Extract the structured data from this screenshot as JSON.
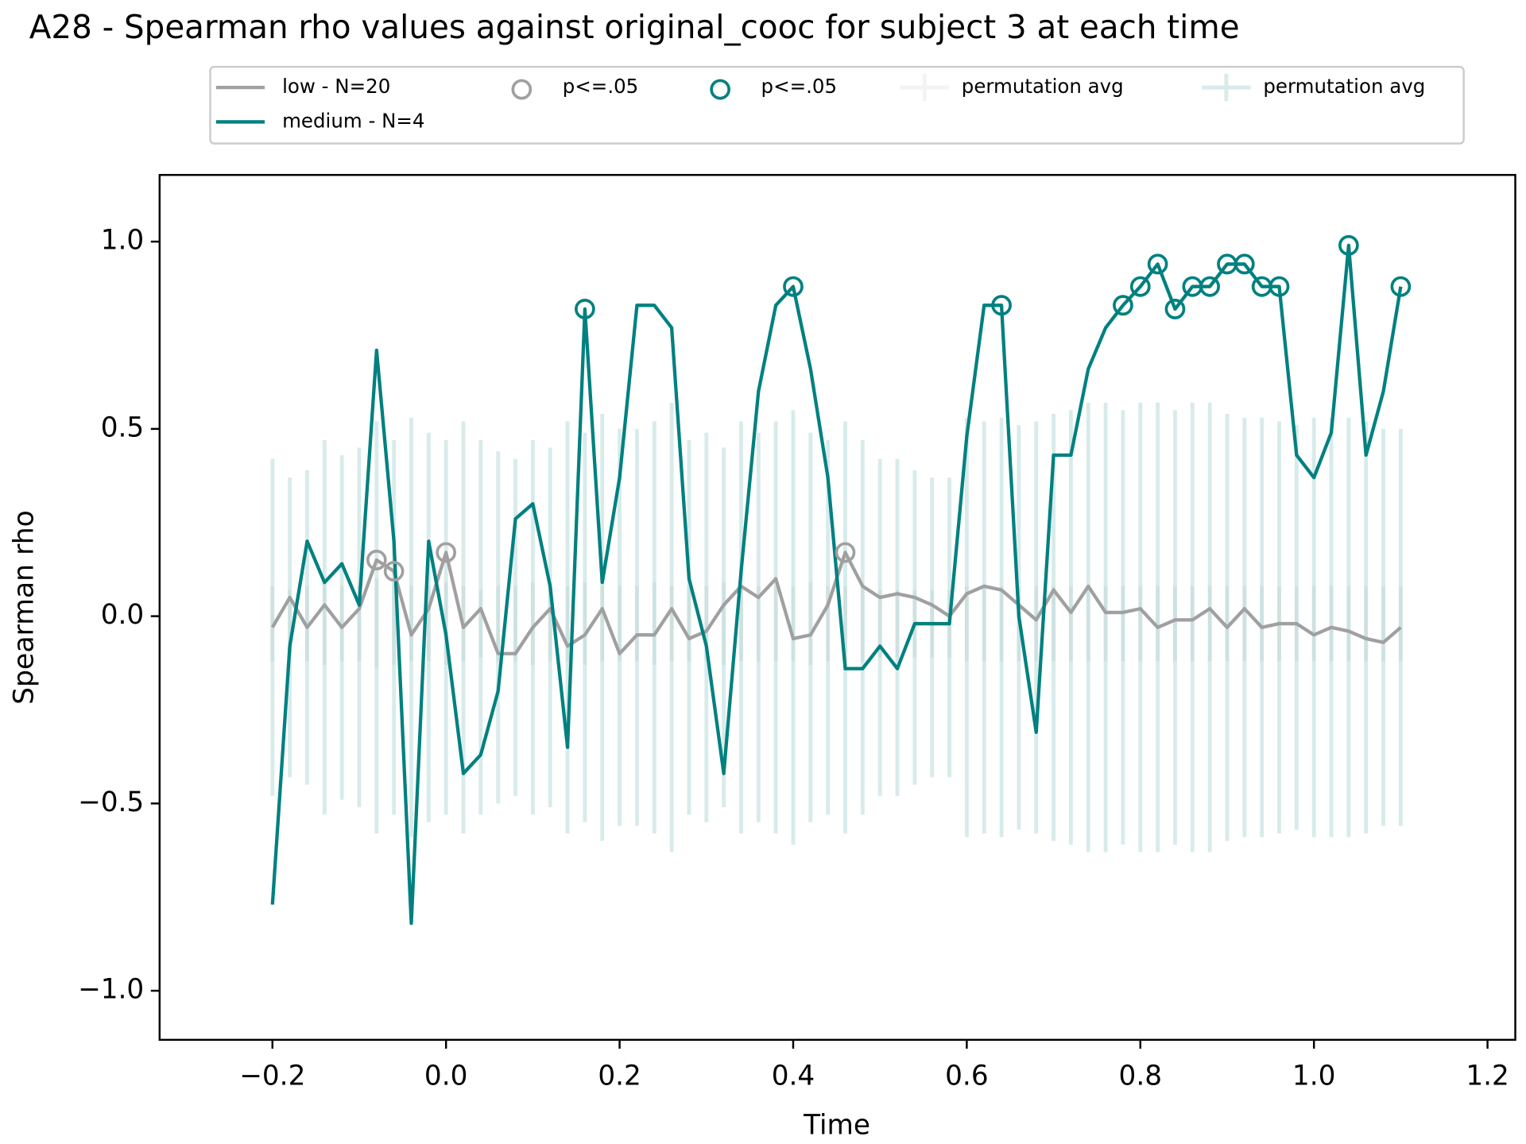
{
  "chart_data": {
    "type": "line",
    "title": "A28 - Spearman rho values against original_cooc for subject 3 at each time",
    "x_label": "Time",
    "y_label": "Spearman rho",
    "x": [
      -0.2,
      -0.18,
      -0.16,
      -0.14,
      -0.12,
      -0.1,
      -0.08,
      -0.06,
      -0.04,
      -0.02,
      0,
      0.02,
      0.04,
      0.06,
      0.08,
      0.1,
      0.12,
      0.14,
      0.16,
      0.18,
      0.2,
      0.22,
      0.24,
      0.26,
      0.28,
      0.3,
      0.32,
      0.34,
      0.36,
      0.38,
      0.4,
      0.42,
      0.44,
      0.46,
      0.48,
      0.5,
      0.52,
      0.54,
      0.56,
      0.58,
      0.6,
      0.62,
      0.64,
      0.66,
      0.68,
      0.7,
      0.72,
      0.74,
      0.76,
      0.78,
      0.8,
      0.82,
      0.84,
      0.86,
      0.88,
      0.9,
      0.92,
      0.94,
      0.96,
      0.98,
      1,
      1.02,
      1.04,
      1.06,
      1.08,
      1.1
    ],
    "xlim": [
      -0.33,
      1.232
    ],
    "ylim": [
      -1.131,
      1.178
    ],
    "xticks": [
      {
        "value": -0.2,
        "label": "−0.2"
      },
      {
        "value": 0,
        "label": "0.0"
      },
      0.2,
      0.4,
      0.6,
      0.8,
      {
        "value": 1,
        "label": "1.0"
      },
      1.2
    ],
    "yticks": [
      {
        "value": -1,
        "label": "−1.0"
      },
      {
        "value": -0.5,
        "label": "−0.5"
      },
      {
        "value": 0,
        "label": "0.0"
      },
      0.5,
      {
        "value": 1,
        "label": "1.0"
      }
    ],
    "legend": "upper center",
    "legend_columns": 5,
    "series": [
      {
        "name": "low - N=20",
        "color": "#a0a0a0",
        "style": "line",
        "values": [
          -0.03,
          0.05,
          -0.03,
          0.03,
          -0.03,
          0.02,
          0.15,
          0.12,
          -0.05,
          0.02,
          0.17,
          -0.03,
          0.02,
          -0.1,
          -0.1,
          -0.03,
          0.02,
          -0.08,
          -0.05,
          0.02,
          -0.1,
          -0.05,
          -0.05,
          0.02,
          -0.06,
          -0.04,
          0.03,
          0.08,
          0.05,
          0.1,
          -0.06,
          -0.05,
          0.03,
          0.17,
          0.08,
          0.05,
          0.06,
          0.05,
          0.03,
          0,
          0.06,
          0.08,
          0.07,
          0.03,
          -0.01,
          0.07,
          0.01,
          0.08,
          0.01,
          0.01,
          0.02,
          -0.03,
          -0.01,
          -0.01,
          0.02,
          -0.03,
          0.02,
          -0.03,
          -0.02,
          -0.02,
          -0.05,
          -0.03,
          -0.04,
          -0.06,
          -0.07,
          -0.03
        ]
      },
      {
        "name": "medium - N=4",
        "color": "#008080",
        "style": "line",
        "values": [
          -0.77,
          -0.08,
          0.2,
          0.09,
          0.14,
          0.03,
          0.71,
          0.2,
          -0.82,
          0.2,
          -0.05,
          -0.42,
          -0.37,
          -0.2,
          0.26,
          0.3,
          0.08,
          -0.35,
          0.82,
          0.09,
          0.37,
          0.83,
          0.83,
          0.77,
          0.1,
          -0.08,
          -0.42,
          0.12,
          0.6,
          0.83,
          0.88,
          0.66,
          0.37,
          -0.14,
          -0.14,
          -0.08,
          -0.14,
          -0.02,
          -0.02,
          -0.02,
          0.48,
          0.83,
          0.83,
          0,
          -0.31,
          0.43,
          0.43,
          0.66,
          0.77,
          0.83,
          0.88,
          0.94,
          0.82,
          0.88,
          0.88,
          0.94,
          0.94,
          0.88,
          0.88,
          0.43,
          0.37,
          0.49,
          0.99,
          0.43,
          0.6,
          0.88
        ]
      },
      {
        "name": "p<=.05",
        "color": "#a0a0a0",
        "style": "circle",
        "values": [
          null,
          null,
          null,
          null,
          null,
          null,
          0.15,
          0.12,
          null,
          null,
          0.17,
          null,
          null,
          null,
          null,
          null,
          null,
          null,
          null,
          null,
          null,
          null,
          null,
          null,
          null,
          null,
          null,
          null,
          null,
          null,
          null,
          null,
          null,
          0.17,
          null,
          null,
          null,
          null,
          null,
          null,
          null,
          null,
          null,
          null,
          null,
          null,
          null,
          null,
          null,
          null,
          null,
          null,
          null,
          null,
          null,
          null,
          null,
          null,
          null,
          null,
          null,
          null,
          null,
          null,
          null,
          null
        ]
      },
      {
        "name": "p<=.05",
        "color": "#008080",
        "style": "circle",
        "values": [
          null,
          null,
          null,
          null,
          null,
          null,
          null,
          null,
          null,
          null,
          null,
          null,
          null,
          null,
          null,
          null,
          null,
          null,
          0.82,
          null,
          null,
          null,
          null,
          null,
          null,
          null,
          null,
          null,
          null,
          null,
          0.88,
          null,
          null,
          null,
          null,
          null,
          null,
          null,
          null,
          null,
          null,
          null,
          0.83,
          null,
          null,
          null,
          null,
          null,
          null,
          0.83,
          0.88,
          0.94,
          0.82,
          0.88,
          0.88,
          0.94,
          0.94,
          0.88,
          0.88,
          null,
          null,
          null,
          0.99,
          null,
          null,
          0.88
        ]
      },
      {
        "name": "permutation avg",
        "color": "#a0a0a0",
        "style": "errorbar",
        "alpha": 0.12,
        "values": [
          -0.02,
          -0.02,
          -0.02,
          -0.02,
          -0.02,
          -0.02,
          -0.02,
          -0.02,
          -0.02,
          -0.02,
          -0.02,
          -0.02,
          -0.02,
          -0.02,
          -0.02,
          -0.02,
          -0.02,
          -0.02,
          -0.02,
          -0.02,
          -0.02,
          -0.02,
          -0.02,
          -0.02,
          -0.02,
          -0.02,
          -0.02,
          -0.02,
          -0.02,
          -0.02,
          -0.02,
          -0.02,
          -0.02,
          -0.02,
          -0.02,
          -0.02,
          -0.02,
          -0.02,
          -0.02,
          -0.02,
          -0.02,
          -0.02,
          -0.02,
          -0.02,
          -0.02,
          -0.02,
          -0.02,
          -0.02,
          -0.02,
          -0.02,
          -0.02,
          -0.02,
          -0.02,
          -0.02,
          -0.02,
          -0.02,
          -0.02,
          -0.02,
          -0.02,
          -0.02,
          -0.02,
          -0.02,
          -0.02,
          -0.02,
          -0.02,
          -0.02
        ],
        "errors": [
          0.1,
          0.09,
          0.1,
          0.11,
          0.1,
          0.1,
          0.12,
          0.11,
          0.1,
          0.1,
          0.11,
          0.1,
          0.09,
          0.1,
          0.1,
          0.11,
          0.1,
          0.1,
          0.11,
          0.1,
          0.1,
          0.1,
          0.11,
          0.1,
          0.1,
          0.1,
          0.11,
          0.1,
          0.1,
          0.1,
          0.1,
          0.11,
          0.1,
          0.1,
          0.1,
          0.09,
          0.09,
          0.09,
          0.09,
          0.09,
          0.1,
          0.1,
          0.1,
          0.1,
          0.1,
          0.1,
          0.1,
          0.1,
          0.1,
          0.1,
          0.1,
          0.1,
          0.1,
          0.1,
          0.1,
          0.1,
          0.1,
          0.1,
          0.1,
          0.1,
          0.1,
          0.1,
          0.1,
          0.1,
          0.1,
          0.1
        ]
      },
      {
        "name": "permutation avg",
        "color": "#008080",
        "style": "errorbar",
        "alpha": 0.15,
        "values": [
          -0.03,
          -0.03,
          -0.03,
          -0.03,
          -0.03,
          -0.03,
          -0.03,
          -0.03,
          -0.03,
          -0.03,
          -0.03,
          -0.03,
          -0.03,
          -0.03,
          -0.03,
          -0.03,
          -0.03,
          -0.03,
          -0.03,
          -0.03,
          -0.03,
          -0.03,
          -0.03,
          -0.03,
          -0.03,
          -0.03,
          -0.03,
          -0.03,
          -0.03,
          -0.03,
          -0.03,
          -0.03,
          -0.03,
          -0.03,
          -0.03,
          -0.03,
          -0.03,
          -0.03,
          -0.03,
          -0.03,
          -0.03,
          -0.03,
          -0.03,
          -0.03,
          -0.03,
          -0.03,
          -0.03,
          -0.03,
          -0.03,
          -0.03,
          -0.03,
          -0.03,
          -0.03,
          -0.03,
          -0.03,
          -0.03,
          -0.03,
          -0.03,
          -0.03,
          -0.03,
          -0.03,
          -0.03,
          -0.03,
          -0.03,
          -0.03,
          -0.03
        ],
        "errors": [
          0.45,
          0.4,
          0.42,
          0.5,
          0.46,
          0.48,
          0.55,
          0.5,
          0.56,
          0.52,
          0.5,
          0.55,
          0.5,
          0.47,
          0.45,
          0.5,
          0.48,
          0.55,
          0.52,
          0.57,
          0.53,
          0.53,
          0.55,
          0.6,
          0.5,
          0.52,
          0.48,
          0.55,
          0.52,
          0.55,
          0.58,
          0.52,
          0.5,
          0.55,
          0.5,
          0.45,
          0.45,
          0.42,
          0.4,
          0.4,
          0.56,
          0.55,
          0.56,
          0.54,
          0.55,
          0.57,
          0.58,
          0.6,
          0.6,
          0.58,
          0.6,
          0.6,
          0.58,
          0.6,
          0.6,
          0.57,
          0.56,
          0.56,
          0.55,
          0.54,
          0.56,
          0.56,
          0.56,
          0.55,
          0.53,
          0.53
        ]
      }
    ]
  }
}
